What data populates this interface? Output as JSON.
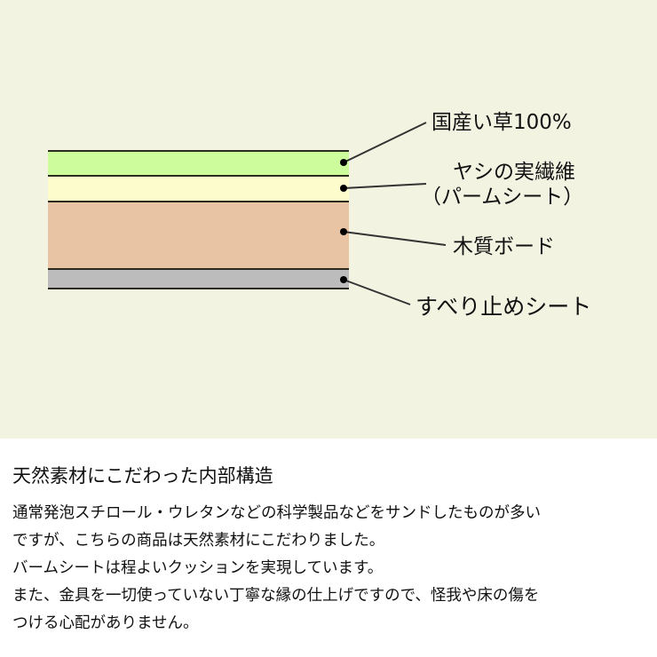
{
  "diagram": {
    "layers": [
      {
        "label": "国産い草100%",
        "color": "#ccfc9c"
      },
      {
        "label": "ヤシの実繊維",
        "label2": "（パームシート）",
        "color": "#fcfccc"
      },
      {
        "label": "木質ボード",
        "color": "#e8c4a4"
      },
      {
        "label": "すべり止めシート",
        "color": "#bcbcbc"
      }
    ],
    "background": "#f3f3e2"
  },
  "description": {
    "title": "天然素材にこだわった内部構造",
    "lines": [
      "通常発泡スチロール・ウレタンなどの科学製品などをサンドしたものが多い",
      "ですが、こちらの商品は天然素材にこだわりました。",
      "バームシートは程よいクッションを実現しています。",
      "また、金具を一切使っていない丁寧な縁の仕上げですので、怪我や床の傷を",
      "つける心配がありません。"
    ]
  }
}
